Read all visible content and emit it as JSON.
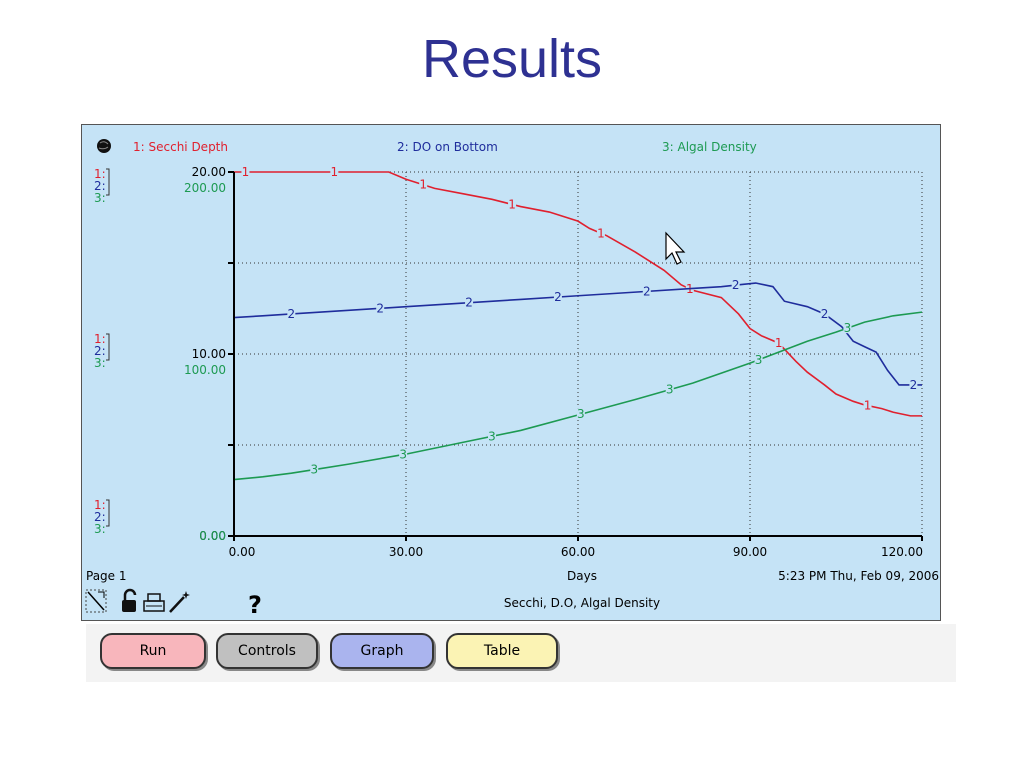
{
  "slide": {
    "title": "Results"
  },
  "colors": {
    "series1": "#e0202e",
    "series2": "#1f2d9c",
    "series3": "#1d9a52",
    "panel": "#c5e3f6",
    "title": "#2e3192"
  },
  "panel": {
    "page_label": "Page 1",
    "subtitle": "Secchi, D.O, Algal Density",
    "timestamp": "5:23 PM  Thu, Feb 09, 2006",
    "help": "?",
    "scale_rows": {
      "top": {
        "one": "1:",
        "two": "2:",
        "three": "3:"
      },
      "mid": {
        "one": "1:",
        "two": "2:",
        "three": "3:"
      },
      "bot": {
        "one": "1:",
        "two": "2:",
        "three": "3:"
      }
    }
  },
  "buttons": {
    "run": "Run",
    "controls": "Controls",
    "graph": "Graph",
    "table": "Table"
  },
  "chart_data": {
    "type": "line",
    "xlabel": "Days",
    "xlim": [
      0,
      120
    ],
    "x_ticks": [
      "0.00",
      "30.00",
      "60.00",
      "90.00",
      "120.00"
    ],
    "y_ticks_primary": [
      "0.00",
      "10.00",
      "20.00"
    ],
    "y_ticks_series3": [
      "0.00",
      "100.00",
      "200.00"
    ],
    "series_ranges": [
      [
        0,
        20
      ],
      [
        0,
        20
      ],
      [
        0,
        200
      ]
    ],
    "grid": true,
    "series": [
      {
        "name": "1: Secchi Depth",
        "marker": "1",
        "x": [
          0,
          10,
          20,
          27,
          30,
          35,
          40,
          45,
          50,
          55,
          60,
          62,
          65,
          70,
          75,
          78,
          80,
          85,
          88,
          90,
          92,
          95,
          98,
          100,
          103,
          105,
          108,
          110,
          113,
          115,
          118,
          120
        ],
        "y": [
          20,
          20,
          20,
          20,
          19.6,
          19.1,
          18.8,
          18.5,
          18.1,
          17.8,
          17.3,
          16.9,
          16.5,
          15.6,
          14.6,
          13.8,
          13.5,
          13.1,
          12.2,
          11.4,
          11.0,
          10.6,
          9.6,
          9.0,
          8.3,
          7.8,
          7.4,
          7.2,
          7.0,
          6.8,
          6.6,
          6.6
        ]
      },
      {
        "name": "2: DO on Bottom",
        "marker": "2",
        "x": [
          0,
          5,
          10,
          20,
          30,
          40,
          50,
          60,
          70,
          80,
          85,
          88,
          91,
          94,
          96,
          100,
          103,
          106,
          108,
          110,
          112,
          114,
          116,
          118,
          120
        ],
        "y": [
          12.0,
          12.1,
          12.2,
          12.4,
          12.6,
          12.8,
          13.0,
          13.2,
          13.4,
          13.6,
          13.7,
          13.8,
          13.9,
          13.7,
          12.9,
          12.6,
          12.2,
          11.5,
          10.7,
          10.4,
          10.1,
          9.1,
          8.3,
          8.3,
          8.3
        ]
      },
      {
        "name": "3: Algal Density",
        "marker": "3",
        "x": [
          0,
          5,
          10,
          15,
          20,
          30,
          40,
          50,
          60,
          70,
          80,
          90,
          100,
          105,
          110,
          115,
          120
        ],
        "y": [
          31.0,
          32.5,
          34.5,
          37.0,
          39.5,
          45.0,
          51.5,
          58.0,
          66.5,
          75.0,
          84.0,
          95.0,
          107.0,
          112.0,
          117.5,
          121.0,
          123.0
        ]
      }
    ]
  }
}
